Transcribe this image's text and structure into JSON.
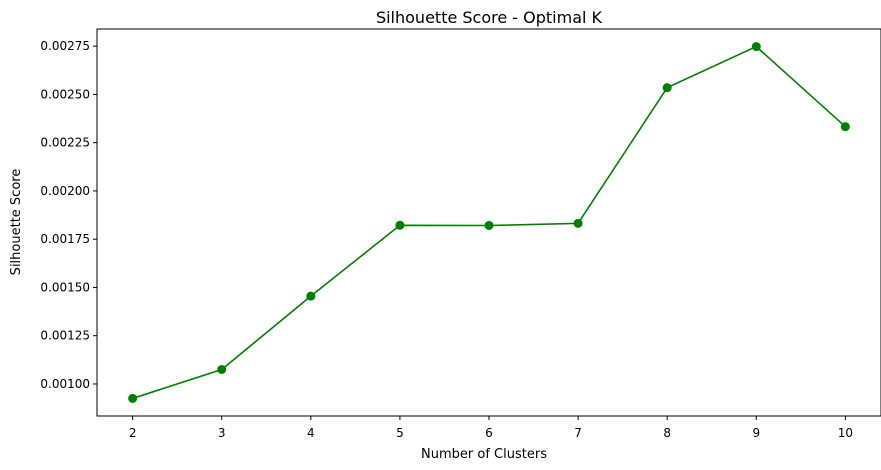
{
  "chart_data": {
    "type": "line",
    "title": "Silhouette Score - Optimal K",
    "xlabel": "Number of Clusters",
    "ylabel": "Silhouette Score",
    "x": [
      2,
      3,
      4,
      5,
      6,
      7,
      8,
      9,
      10
    ],
    "series": [
      {
        "values": [
          0.000925,
          0.001075,
          0.001455,
          0.001822,
          0.001821,
          0.001832,
          0.002535,
          0.002748,
          0.002333
        ],
        "color": "#008000",
        "marker": "circle"
      }
    ],
    "xticks": [
      "2",
      "3",
      "4",
      "5",
      "6",
      "7",
      "8",
      "9",
      "10"
    ],
    "yticks": [
      "0.00100",
      "0.00125",
      "0.00150",
      "0.00175",
      "0.00200",
      "0.00225",
      "0.00250",
      "0.00275"
    ],
    "ytick_values": [
      0.001,
      0.00125,
      0.0015,
      0.00175,
      0.002,
      0.00225,
      0.0025,
      0.00275
    ],
    "xlim": [
      1.6,
      10.4
    ],
    "ylim": [
      0.000834,
      0.002839
    ],
    "grid": false,
    "legend": "none"
  }
}
